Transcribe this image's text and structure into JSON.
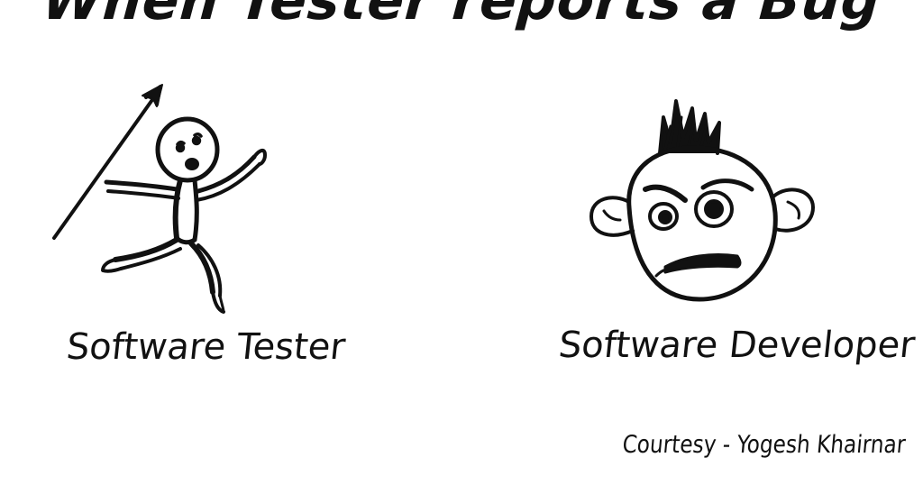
{
  "title": "When Tester reports a Bug",
  "characters": {
    "tester": {
      "label": "Software Tester",
      "icon": "stick-figure-with-spear-icon"
    },
    "developer": {
      "label": "Software Developer",
      "icon": "angry-face-icon"
    }
  },
  "credit": "Courtesy - Yogesh Khairnar",
  "colors": {
    "ink": "#111111",
    "background": "#ffffff"
  }
}
